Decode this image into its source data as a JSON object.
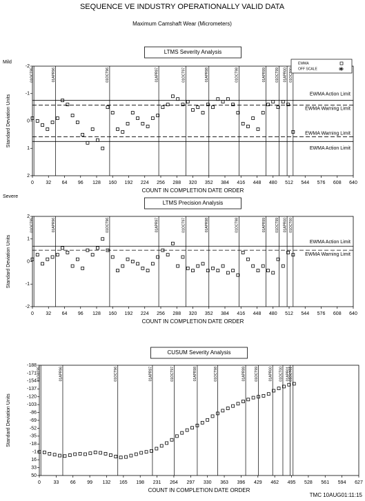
{
  "title": "SEQUENCE VE   INDUSTRY OPERATIONALLY VALID DATA",
  "subtitle": "Maximum Camshaft Wear (Micrometers)",
  "footer": "TMC  10AUG01:11:15",
  "chart_data": [
    {
      "type": "scatter",
      "title": "LTMS Severity Analysis",
      "xlabel": "COUNT IN COMPLETION DATE ORDER",
      "ylabel": "Standard Deviation Units",
      "ylabel_top": "Mild",
      "ylabel_bottom": "Severe",
      "xlim": [
        0,
        640
      ],
      "xticks": [
        0,
        32,
        64,
        96,
        128,
        160,
        192,
        224,
        256,
        288,
        320,
        352,
        384,
        416,
        448,
        480,
        512,
        544,
        576,
        608,
        640
      ],
      "ylim": [
        2,
        -2
      ],
      "yticks": [
        -2,
        -1,
        0,
        1,
        2
      ],
      "series": [
        {
          "name": "EWMA",
          "color": "#000000",
          "x": [
            0,
            10,
            20,
            30,
            40,
            50,
            60,
            70,
            80,
            90,
            100,
            110,
            120,
            130,
            140,
            150,
            160,
            170,
            180,
            190,
            200,
            210,
            220,
            230,
            240,
            250,
            260,
            270,
            280,
            290,
            300,
            310,
            320,
            330,
            340,
            350,
            360,
            370,
            380,
            390,
            400,
            410,
            420,
            430,
            440,
            450,
            460,
            470,
            480,
            490,
            500,
            510,
            520
          ],
          "values": [
            -0.1,
            0,
            0.15,
            0.3,
            0.05,
            -0.1,
            -0.75,
            -0.6,
            -0.2,
            0.05,
            0.5,
            0.8,
            0.3,
            0.7,
            1.0,
            -0.5,
            -0.3,
            0.3,
            0.4,
            0.1,
            -0.3,
            -0.1,
            0.1,
            0.2,
            -0.1,
            -0.2,
            -0.5,
            -0.6,
            -0.9,
            -0.8,
            -0.6,
            -0.7,
            -0.4,
            -0.5,
            -0.3,
            -0.6,
            -0.5,
            -0.8,
            -0.7,
            -0.8,
            -0.6,
            -0.3,
            0.1,
            0.2,
            -0.1,
            0.3,
            -0.3,
            -0.6,
            -0.7,
            -0.5,
            -0.7,
            -0.6,
            0.4
          ]
        },
        {
          "name": "OFF SCALE",
          "color": "#000000",
          "x": [],
          "values": []
        }
      ],
      "hlines": [
        {
          "value": -0.75,
          "label": "EWMA Action Limit",
          "dash": false
        },
        {
          "value": -0.58,
          "label": "EWMA Warning Limit",
          "dash": true
        },
        {
          "value": 0.58,
          "label": "EWMA Warning Limit",
          "dash": true
        },
        {
          "value": 0.75,
          "label": "EWMA Action Limit",
          "dash": false
        }
      ],
      "vlines": [
        {
          "value": 3,
          "label": "01OCT95"
        },
        {
          "value": 46,
          "label": "01APR96"
        },
        {
          "value": 154,
          "label": "01OCT96"
        },
        {
          "value": 252,
          "label": "01APR97"
        },
        {
          "value": 306,
          "label": "01OCT97"
        },
        {
          "value": 352,
          "label": "01APR98"
        },
        {
          "value": 412,
          "label": "01OCT98"
        },
        {
          "value": 466,
          "label": "01APR99"
        },
        {
          "value": 492,
          "label": "01OCT99"
        },
        {
          "value": 508,
          "label": "01APR00"
        },
        {
          "value": 520,
          "label": "01OCT00"
        }
      ]
    },
    {
      "type": "scatter",
      "title": "LTMS Precision Analysis",
      "xlabel": "COUNT IN COMPLETION DATE ORDER",
      "ylabel": "Standard Deviation Units",
      "xlim": [
        0,
        640
      ],
      "xticks": [
        0,
        32,
        64,
        96,
        128,
        160,
        192,
        224,
        256,
        288,
        320,
        352,
        384,
        416,
        448,
        480,
        512,
        544,
        576,
        608,
        640
      ],
      "ylim": [
        -2,
        2
      ],
      "yticks": [
        -2,
        -1,
        0,
        1,
        2
      ],
      "series": [
        {
          "name": "EWMA",
          "color": "#000000",
          "x": [
            0,
            10,
            20,
            30,
            40,
            50,
            60,
            70,
            80,
            90,
            100,
            110,
            120,
            130,
            140,
            150,
            160,
            170,
            180,
            190,
            200,
            210,
            220,
            230,
            240,
            250,
            260,
            270,
            280,
            290,
            300,
            310,
            320,
            330,
            340,
            350,
            360,
            370,
            380,
            390,
            400,
            410,
            420,
            430,
            440,
            450,
            460,
            470,
            480,
            490,
            500,
            510,
            520
          ],
          "values": [
            0.1,
            0.3,
            -0.1,
            0.1,
            0.2,
            0.3,
            0.6,
            0.4,
            -0.2,
            0.1,
            -0.3,
            0.5,
            0.3,
            0.6,
            1.0,
            0.5,
            0.2,
            -0.4,
            -0.2,
            0.1,
            0,
            -0.1,
            -0.3,
            -0.4,
            -0.1,
            0.2,
            0.5,
            0.3,
            0.8,
            -0.2,
            0.2,
            -0.3,
            -0.4,
            -0.2,
            -0.1,
            -0.4,
            -0.3,
            -0.4,
            -0.2,
            -0.5,
            -0.4,
            -0.6,
            0.4,
            0.1,
            -0.2,
            -0.4,
            -0.2,
            -0.4,
            -0.5,
            0.1,
            -0.2,
            0.4,
            0.3
          ]
        }
      ],
      "hlines": [
        {
          "value": 0.68,
          "label": "EWMA Action Limit",
          "dash": false
        },
        {
          "value": 0.5,
          "label": "EWMA Warning Limit",
          "dash": true
        }
      ],
      "vlines": [
        {
          "value": 3,
          "label": "01OCT95"
        },
        {
          "value": 46,
          "label": "01APR96"
        },
        {
          "value": 154,
          "label": "01OCT96"
        },
        {
          "value": 252,
          "label": "01APR97"
        },
        {
          "value": 306,
          "label": "01OCT97"
        },
        {
          "value": 352,
          "label": "01APR98"
        },
        {
          "value": 412,
          "label": "01OCT98"
        },
        {
          "value": 466,
          "label": "01APR99"
        },
        {
          "value": 492,
          "label": "01OCT99"
        },
        {
          "value": 508,
          "label": "01APR00"
        },
        {
          "value": 520,
          "label": "01OCT00"
        }
      ]
    },
    {
      "type": "scatter",
      "title": "CUSUM Severity Analysis",
      "xlabel": "COUNT IN COMPLETION DATE ORDER",
      "ylabel": "Standard Deviation Units",
      "xlim": [
        0,
        627
      ],
      "xticks": [
        0,
        33,
        66,
        99,
        132,
        165,
        198,
        231,
        264,
        297,
        330,
        363,
        396,
        429,
        462,
        495,
        528,
        561,
        594,
        627
      ],
      "ylim": [
        50,
        -188
      ],
      "yticks": [
        -188,
        -171,
        -154,
        -137,
        -120,
        -103,
        -86,
        -69,
        -52,
        -35,
        -18,
        -1,
        16,
        33,
        50
      ],
      "series": [
        {
          "name": "CUSUM",
          "color": "#000000",
          "x": [
            0,
            10,
            20,
            30,
            40,
            50,
            60,
            70,
            80,
            90,
            100,
            110,
            120,
            130,
            140,
            150,
            160,
            170,
            180,
            190,
            200,
            210,
            220,
            230,
            240,
            250,
            260,
            270,
            280,
            290,
            300,
            310,
            320,
            330,
            340,
            350,
            360,
            370,
            380,
            390,
            400,
            410,
            420,
            430,
            440,
            450,
            460,
            470,
            480,
            490,
            500
          ],
          "values": [
            -1,
            0,
            3,
            5,
            7,
            8,
            6,
            4,
            3,
            4,
            2,
            0,
            1,
            3,
            6,
            9,
            11,
            10,
            7,
            4,
            1,
            -1,
            -3,
            -8,
            -14,
            -20,
            -27,
            -35,
            -42,
            -48,
            -53,
            -58,
            -64,
            -70,
            -78,
            -84,
            -90,
            -95,
            -100,
            -105,
            -110,
            -114,
            -118,
            -120,
            -122,
            -126,
            -133,
            -138,
            -142,
            -146,
            -148
          ]
        }
      ],
      "hlines": [],
      "vlines": [
        {
          "value": 3,
          "label": "01OCT95"
        },
        {
          "value": 46,
          "label": "01APR96"
        },
        {
          "value": 154,
          "label": "01OCT96"
        },
        {
          "value": 222,
          "label": "01APR97"
        },
        {
          "value": 265,
          "label": "01OCT97"
        },
        {
          "value": 310,
          "label": "01APR98"
        },
        {
          "value": 350,
          "label": "01OCT98"
        },
        {
          "value": 405,
          "label": "01APR99"
        },
        {
          "value": 430,
          "label": "01OCT99"
        },
        {
          "value": 458,
          "label": "01APR00"
        },
        {
          "value": 478,
          "label": "01OCT00"
        },
        {
          "value": 492,
          "label": "01APR01"
        },
        {
          "value": 498,
          "label": "01OCT01"
        }
      ]
    }
  ]
}
